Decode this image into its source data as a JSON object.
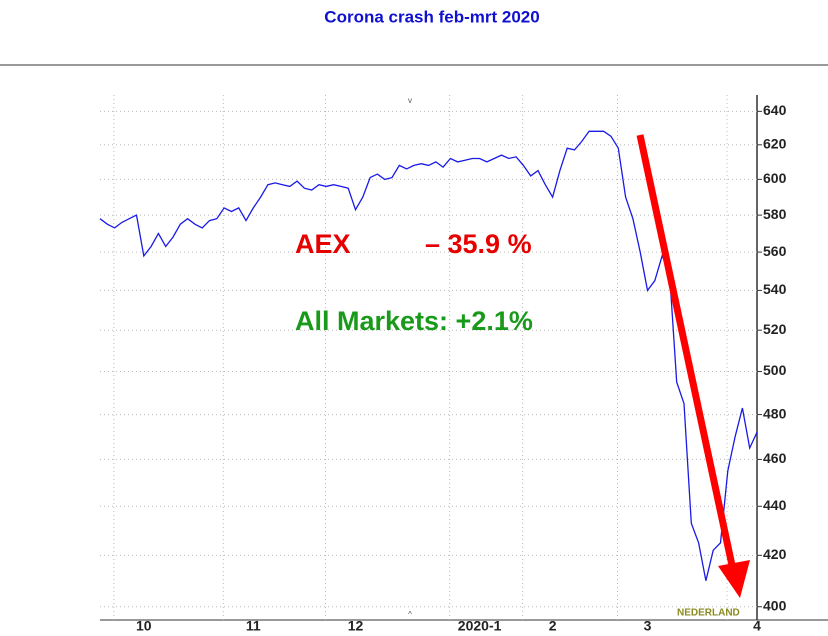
{
  "chart_data": {
    "type": "line",
    "title": "Corona crash feb-mrt 2020",
    "categories": [
      null,
      null,
      null,
      null,
      null,
      null,
      "10",
      null,
      null,
      null,
      null,
      null,
      null,
      null,
      null,
      null,
      null,
      null,
      null,
      null,
      null,
      "11",
      null,
      null,
      null,
      null,
      null,
      null,
      null,
      null,
      null,
      null,
      null,
      null,
      null,
      "12",
      null,
      null,
      null,
      null,
      null,
      null,
      null,
      null,
      null,
      null,
      null,
      null,
      null,
      null,
      null,
      null,
      "2020-1",
      null,
      null,
      null,
      null,
      null,
      null,
      null,
      null,
      null,
      "2",
      null,
      null,
      null,
      null,
      null,
      null,
      null,
      null,
      null,
      null,
      null,
      null,
      "3",
      null,
      null,
      null,
      null,
      null,
      null,
      null,
      null,
      null,
      null,
      null,
      null,
      null,
      null,
      "4"
    ],
    "series": [
      {
        "name": "AEX",
        "color": "#1a1ae6",
        "values": [
          578,
          575,
          573,
          576,
          578,
          580,
          558,
          563,
          570,
          563,
          568,
          575,
          578,
          575,
          573,
          577,
          578,
          584,
          582,
          584,
          577,
          584,
          590,
          597,
          598,
          597,
          596,
          599,
          595,
          594,
          597,
          596,
          597,
          596,
          595,
          583,
          590,
          601,
          603,
          600,
          601,
          608,
          606,
          608,
          609,
          608,
          610,
          607,
          612,
          610,
          611,
          612,
          612,
          610,
          612,
          614,
          612,
          613,
          608,
          602,
          605,
          597,
          590,
          605,
          618,
          617,
          622,
          628,
          628,
          628,
          625,
          618,
          590,
          578,
          560,
          540,
          545,
          558,
          550,
          495,
          485,
          433,
          425,
          410,
          422,
          425,
          455,
          470,
          483,
          465,
          472
        ]
      }
    ],
    "ylim": [
      395,
      650
    ],
    "log_scale": true,
    "grid": true,
    "yticks": [
      400,
      420,
      440,
      460,
      480,
      500,
      520,
      540,
      560,
      580,
      600,
      620,
      640
    ],
    "annotations": [
      {
        "text": "AEX",
        "color": "#e60000"
      },
      {
        "text": "– 35.9 %",
        "color": "#e60000"
      },
      {
        "text": "All Markets: +2.1%",
        "color": "#1a9a1a"
      },
      {
        "text": "NEDERLAND",
        "color": "#8a8a20"
      }
    ]
  }
}
